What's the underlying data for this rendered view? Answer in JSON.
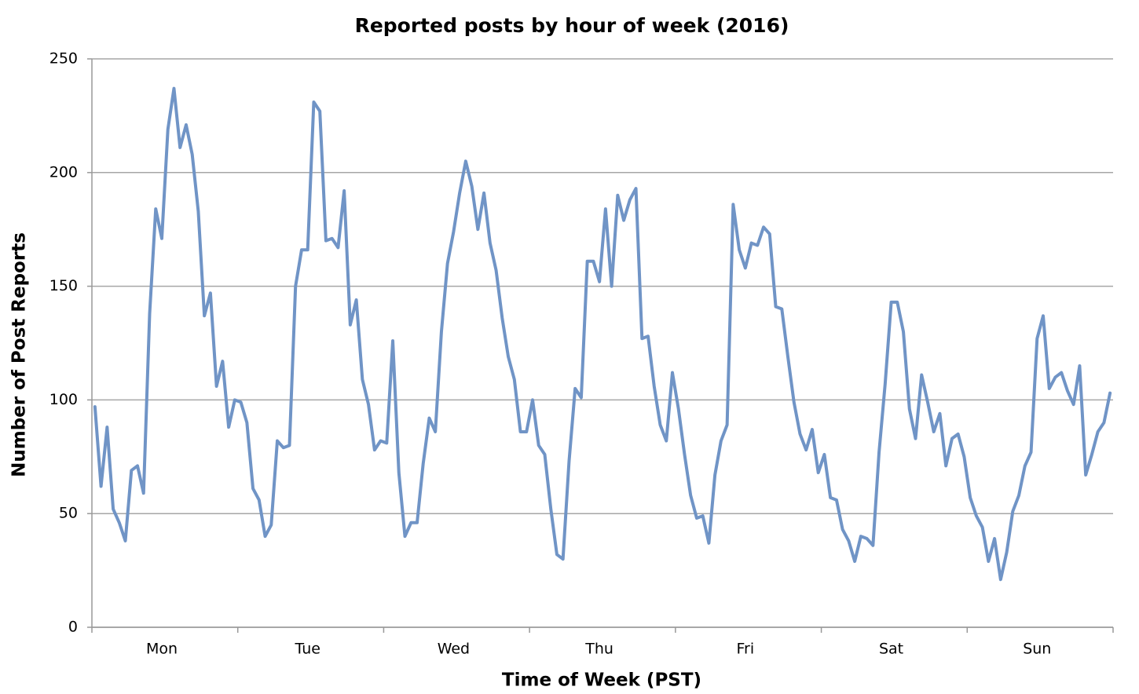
{
  "chart_data": {
    "type": "line",
    "title": "Reported posts by hour of week (2016)",
    "x_label": "Time of Week (PST)",
    "y_label": "Number of Post Reports",
    "categories": [
      null,
      null,
      null,
      null,
      null,
      null,
      null,
      null,
      null,
      null,
      null,
      "Mon",
      null,
      null,
      null,
      null,
      null,
      null,
      null,
      null,
      null,
      null,
      null,
      null,
      null,
      null,
      null,
      null,
      null,
      null,
      null,
      null,
      null,
      null,
      null,
      "Tue",
      null,
      null,
      null,
      null,
      null,
      null,
      null,
      null,
      null,
      null,
      null,
      null,
      null,
      null,
      null,
      null,
      null,
      null,
      null,
      null,
      null,
      null,
      null,
      "Wed",
      null,
      null,
      null,
      null,
      null,
      null,
      null,
      null,
      null,
      null,
      null,
      null,
      null,
      null,
      null,
      null,
      null,
      null,
      null,
      null,
      null,
      null,
      null,
      "Thu",
      null,
      null,
      null,
      null,
      null,
      null,
      null,
      null,
      null,
      null,
      null,
      null,
      null,
      null,
      null,
      null,
      null,
      null,
      null,
      null,
      null,
      null,
      null,
      "Fri",
      null,
      null,
      null,
      null,
      null,
      null,
      null,
      null,
      null,
      null,
      null,
      null,
      null,
      null,
      null,
      null,
      null,
      null,
      null,
      null,
      null,
      null,
      null,
      "Sat",
      null,
      null,
      null,
      null,
      null,
      null,
      null,
      null,
      null,
      null,
      null,
      null,
      null,
      null,
      null,
      null,
      null,
      null,
      null,
      null,
      null,
      null,
      null,
      "Sun",
      null,
      null,
      null,
      null,
      null,
      null,
      null,
      null,
      null,
      null,
      null,
      null
    ],
    "values": [
      97,
      62,
      88,
      52,
      46,
      38,
      69,
      71,
      59,
      138,
      184,
      171,
      219,
      237,
      211,
      221,
      208,
      183,
      137,
      147,
      106,
      117,
      88,
      100,
      99,
      90,
      61,
      56,
      40,
      45,
      82,
      79,
      80,
      150,
      166,
      166,
      231,
      227,
      170,
      171,
      167,
      192,
      133,
      144,
      109,
      98,
      78,
      82,
      81,
      126,
      68,
      40,
      46,
      46,
      72,
      92,
      86,
      130,
      160,
      174,
      191,
      205,
      194,
      175,
      191,
      169,
      157,
      136,
      119,
      109,
      86,
      86,
      100,
      80,
      76,
      52,
      32,
      30,
      73,
      105,
      101,
      161,
      161,
      152,
      184,
      150,
      190,
      179,
      188,
      193,
      127,
      128,
      106,
      89,
      82,
      112,
      96,
      76,
      58,
      48,
      49,
      37,
      67,
      82,
      89,
      186,
      166,
      158,
      169,
      168,
      176,
      173,
      141,
      140,
      119,
      99,
      85,
      78,
      87,
      68,
      76,
      57,
      56,
      43,
      38,
      29,
      40,
      39,
      36,
      77,
      107,
      143,
      143,
      130,
      96,
      83,
      111,
      99,
      86,
      94,
      71,
      83,
      85,
      75,
      57,
      49,
      44,
      29,
      39,
      21,
      33,
      51,
      58,
      71,
      77,
      127,
      137,
      105,
      110,
      112,
      104,
      98,
      115,
      67,
      76,
      86,
      90,
      103
    ],
    "color": "#7094c6",
    "ylim": [
      0,
      250
    ],
    "yticks": [
      0,
      50,
      100,
      150,
      200,
      250
    ],
    "grid": true
  }
}
